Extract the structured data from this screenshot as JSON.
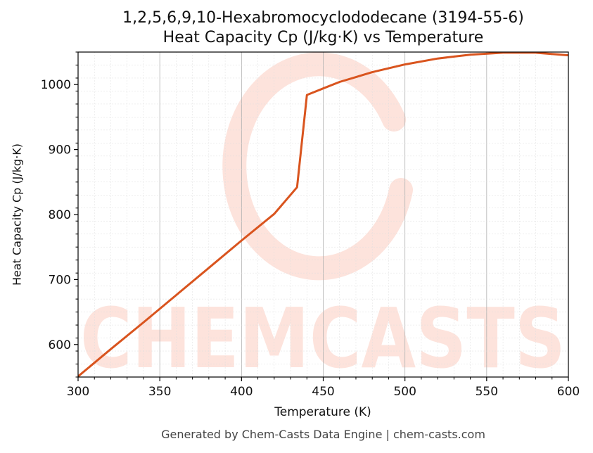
{
  "title_line1": "1,2,5,6,9,10-Hexabromocyclododecane (3194-55-6)",
  "title_line2": "Heat Capacity Cp (J/kg·K) vs Temperature",
  "footer": "Generated by Chem-Casts Data Engine | chem-casts.com",
  "watermark": "CHEMCASTS",
  "colors": {
    "line": "#d9541e",
    "watermark": "#fde3dc",
    "grid": "#b0b0b0"
  },
  "chart_data": {
    "type": "line",
    "title": "1,2,5,6,9,10-Hexabromocyclododecane (3194-55-6) Heat Capacity Cp (J/kg·K) vs Temperature",
    "xlabel": "Temperature (K)",
    "ylabel": "Heat Capacity Cp (J/kg·K)",
    "xlim": [
      300,
      600
    ],
    "ylim": [
      550,
      1050
    ],
    "xticks": [
      300,
      350,
      400,
      450,
      500,
      550,
      600
    ],
    "yticks": [
      600,
      700,
      800,
      900,
      1000
    ],
    "grid": true,
    "series": [
      {
        "x": [
          300,
          320,
          340,
          360,
          380,
          400,
          420,
          434,
          440,
          450,
          460,
          480,
          500,
          520,
          540,
          560,
          580,
          600
        ],
        "y": [
          551,
          593,
          634,
          676,
          718,
          760,
          801,
          842,
          984,
          994,
          1004,
          1019,
          1031,
          1040,
          1046,
          1049,
          1049,
          1045
        ]
      }
    ]
  }
}
